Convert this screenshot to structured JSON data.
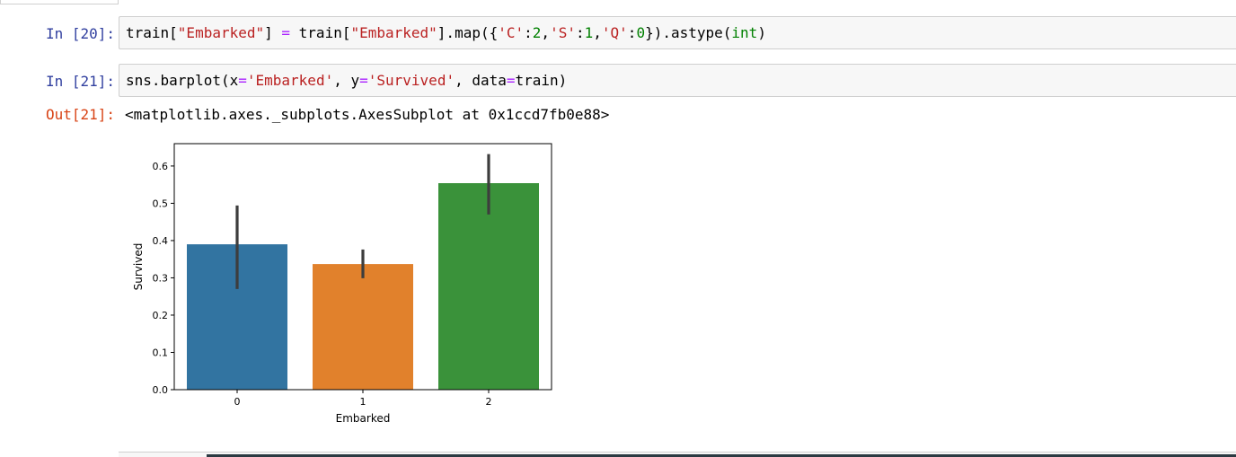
{
  "cells": [
    {
      "prompt": "In [20]:",
      "code_tokens": [
        {
          "t": "train[",
          "c": ""
        },
        {
          "t": "\"Embarked\"",
          "c": "tk-str"
        },
        {
          "t": "] ",
          "c": ""
        },
        {
          "t": "=",
          "c": "tk-op"
        },
        {
          "t": " train[",
          "c": ""
        },
        {
          "t": "\"Embarked\"",
          "c": "tk-str"
        },
        {
          "t": "].map({",
          "c": ""
        },
        {
          "t": "'C'",
          "c": "tk-str"
        },
        {
          "t": ":",
          "c": ""
        },
        {
          "t": "2",
          "c": "tk-num"
        },
        {
          "t": ",",
          "c": ""
        },
        {
          "t": "'S'",
          "c": "tk-str"
        },
        {
          "t": ":",
          "c": ""
        },
        {
          "t": "1",
          "c": "tk-num"
        },
        {
          "t": ",",
          "c": ""
        },
        {
          "t": "'Q'",
          "c": "tk-str"
        },
        {
          "t": ":",
          "c": ""
        },
        {
          "t": "0",
          "c": "tk-num"
        },
        {
          "t": "}).astype(",
          "c": ""
        },
        {
          "t": "int",
          "c": "tk-bi"
        },
        {
          "t": ")",
          "c": ""
        }
      ]
    },
    {
      "prompt": "In [21]:",
      "code_tokens": [
        {
          "t": "sns.barplot(x",
          "c": ""
        },
        {
          "t": "=",
          "c": "tk-op"
        },
        {
          "t": "'Embarked'",
          "c": "tk-str"
        },
        {
          "t": ", y",
          "c": ""
        },
        {
          "t": "=",
          "c": "tk-op"
        },
        {
          "t": "'Survived'",
          "c": "tk-str"
        },
        {
          "t": ", data",
          "c": ""
        },
        {
          "t": "=",
          "c": "tk-op"
        },
        {
          "t": "train)",
          "c": ""
        }
      ],
      "out_prompt": "Out[21]:",
      "out_text": "<matplotlib.axes._subplots.AxesSubplot at 0x1ccd7fb0e88>"
    }
  ],
  "chart_data": {
    "type": "bar",
    "categories": [
      "0",
      "1",
      "2"
    ],
    "values": [
      0.39,
      0.337,
      0.554
    ],
    "error_bars": [
      [
        0.27,
        0.494
      ],
      [
        0.299,
        0.376
      ],
      [
        0.47,
        0.632
      ]
    ],
    "colors": [
      "#3274a1",
      "#e1812c",
      "#3a923a"
    ],
    "xlabel": "Embarked",
    "ylabel": "Survived",
    "ylim": [
      0,
      0.66
    ],
    "yticks": [
      0.0,
      0.1,
      0.2,
      0.3,
      0.4,
      0.5,
      0.6
    ],
    "ytick_labels": [
      "0.0",
      "0.1",
      "0.2",
      "0.3",
      "0.4",
      "0.5",
      "0.6"
    ],
    "grid": false,
    "legend": null
  }
}
